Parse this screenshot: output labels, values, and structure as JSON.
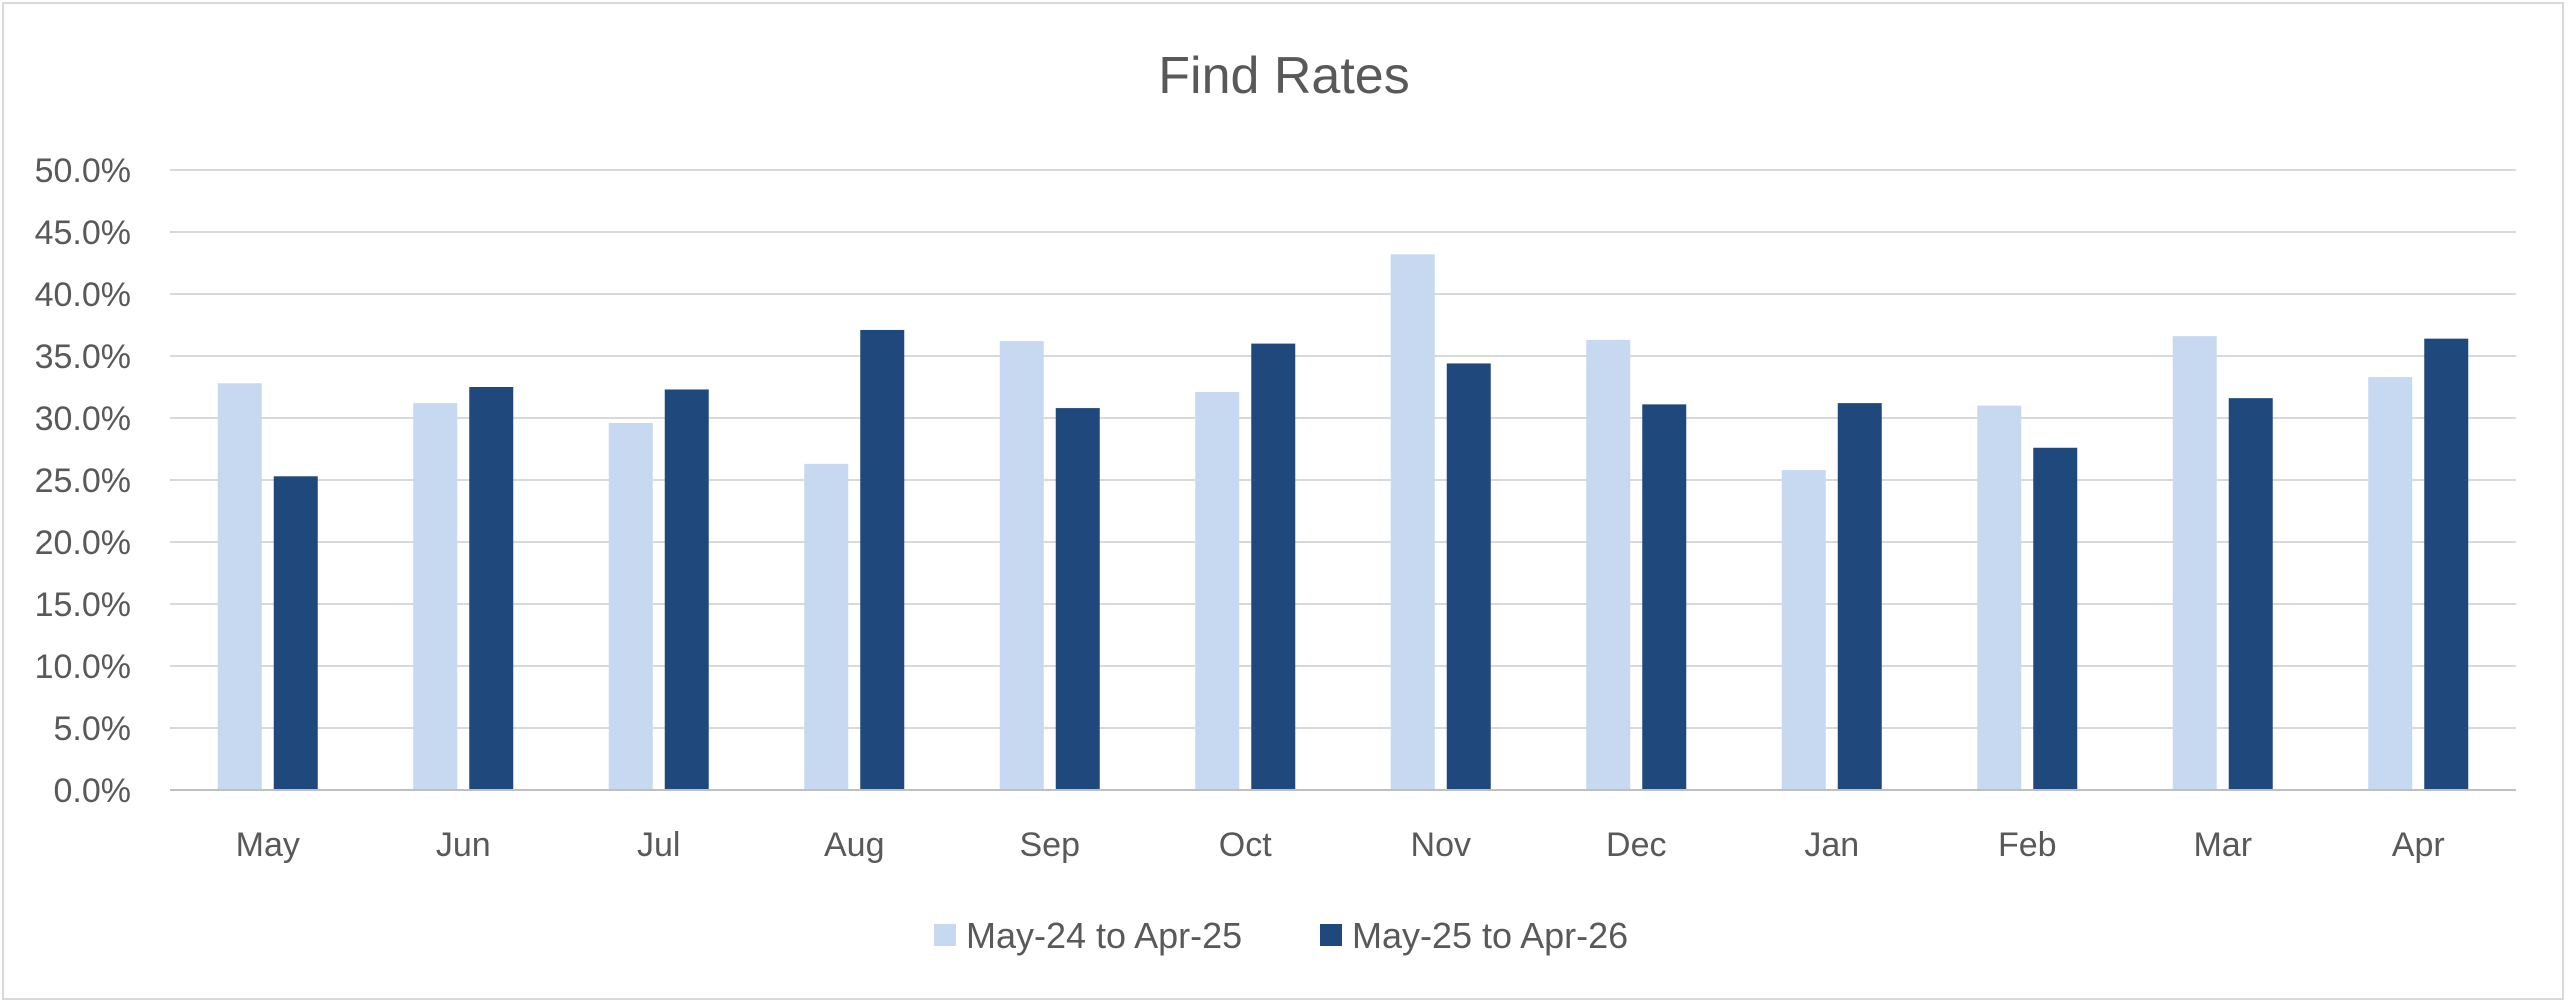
{
  "chart_data": {
    "type": "bar",
    "title": "Find Rates",
    "xlabel": "",
    "ylabel": "",
    "categories": [
      "May",
      "Jun",
      "Jul",
      "Aug",
      "Sep",
      "Oct",
      "Nov",
      "Dec",
      "Jan",
      "Feb",
      "Mar",
      "Apr"
    ],
    "series": [
      {
        "name": "May-24 to Apr-25",
        "color": "#c6d9f1",
        "values": [
          32.8,
          31.2,
          29.6,
          26.3,
          36.2,
          32.1,
          43.2,
          36.3,
          25.8,
          31.0,
          36.6,
          33.3
        ]
      },
      {
        "name": "May-25 to Apr-26",
        "color": "#1f497d",
        "values": [
          25.3,
          32.5,
          32.3,
          37.1,
          30.8,
          36.0,
          34.4,
          31.1,
          31.2,
          27.6,
          31.6,
          36.4
        ]
      }
    ],
    "ylim": [
      0,
      50
    ],
    "y_ticks": [
      "0.0%",
      "5.0%",
      "10.0%",
      "15.0%",
      "20.0%",
      "25.0%",
      "30.0%",
      "35.0%",
      "40.0%",
      "45.0%",
      "50.0%"
    ],
    "grid": true,
    "legend_position": "bottom"
  }
}
